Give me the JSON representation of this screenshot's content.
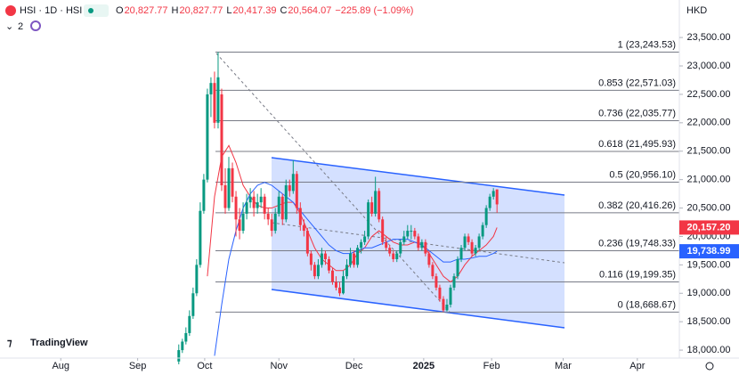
{
  "chart_data": {
    "type": "candlestick",
    "symbol": "HSI · 1D · HSI",
    "ohlc_legend": [
      {
        "key": "O",
        "value": 20827.77,
        "label": "20,827.77"
      },
      {
        "key": "H",
        "value": 20827.77,
        "label": "20,827.77"
      },
      {
        "key": "L",
        "value": 20417.39,
        "label": "20,417.39"
      },
      {
        "key": "C",
        "value": 20564.07,
        "label": "20,564.07"
      }
    ],
    "change": {
      "value": -225.89,
      "label": "−225.89 (−1.09%)"
    },
    "indicator_count": 2,
    "currency": "HKD",
    "logo": "TradingView",
    "up_color": "#089981",
    "down_color": "#f23645",
    "ylim": [
      17860,
      24160
    ],
    "yticks": [
      {
        "value": 18000,
        "label": "18,000.00"
      },
      {
        "value": 18500,
        "label": "18,500.00"
      },
      {
        "value": 19000,
        "label": "19,000.00"
      },
      {
        "value": 19500,
        "label": "19,500.00"
      },
      {
        "value": 20000,
        "label": "20,000.00"
      },
      {
        "value": 20500,
        "label": "20,500.00"
      },
      {
        "value": 21000,
        "label": "21,000.00"
      },
      {
        "value": 21500,
        "label": "21,500.00"
      },
      {
        "value": 22000,
        "label": "22,000.00"
      },
      {
        "value": 22500,
        "label": "22,500.00"
      },
      {
        "value": 23000,
        "label": "23,000.00"
      },
      {
        "value": 23500,
        "label": "23,500.00"
      }
    ],
    "xlim": [
      0,
      190
    ],
    "xticks": [
      {
        "value": 17,
        "label": "Aug"
      },
      {
        "value": 38.5,
        "label": "Sep"
      },
      {
        "value": 57.25,
        "label": "Oct"
      },
      {
        "value": 78,
        "label": "Nov"
      },
      {
        "value": 99,
        "label": "Dec"
      },
      {
        "value": 118.5,
        "label": "2025"
      },
      {
        "value": 137.5,
        "label": "Feb"
      },
      {
        "value": 157.5,
        "label": "Mar"
      },
      {
        "value": 178.25,
        "label": "Apr"
      }
    ],
    "x": [
      50,
      51,
      52,
      53,
      54,
      55,
      56,
      57,
      58,
      59,
      60,
      61,
      62,
      63,
      64,
      65,
      66,
      67,
      68,
      69,
      70,
      71,
      72,
      73,
      74,
      75,
      76,
      77,
      78,
      79,
      80,
      81,
      82,
      83,
      84,
      85,
      86,
      87,
      88,
      89,
      90,
      91,
      92,
      93,
      94,
      95,
      96,
      97,
      98,
      99,
      100,
      101,
      102,
      103,
      104,
      105,
      106,
      107,
      108,
      109,
      110,
      111,
      112,
      113,
      114,
      115,
      116,
      117,
      118,
      119,
      120,
      121,
      122,
      123,
      124,
      125,
      126,
      127,
      128,
      129,
      130,
      131,
      132,
      133,
      134,
      135,
      136,
      137,
      138,
      139
    ],
    "candles": [
      [
        17800,
        18100,
        17750,
        18000
      ],
      [
        18000,
        18200,
        17950,
        18150
      ],
      [
        18150,
        18400,
        18100,
        18300
      ],
      [
        18300,
        18700,
        18250,
        18600
      ],
      [
        18600,
        19100,
        18550,
        19000
      ],
      [
        19000,
        19600,
        18950,
        19500
      ],
      [
        19500,
        20600,
        19450,
        20450
      ],
      [
        20450,
        21100,
        20400,
        21000
      ],
      [
        21000,
        22600,
        20950,
        22500
      ],
      [
        22500,
        22800,
        22100,
        22700
      ],
      [
        22700,
        22900,
        21900,
        22000
      ],
      [
        22000,
        23243.53,
        21900,
        22800
      ],
      [
        22500,
        22600,
        20800,
        20900
      ],
      [
        20900,
        21200,
        20400,
        20500
      ],
      [
        20500,
        21400,
        20450,
        21200
      ],
      [
        21200,
        21300,
        20600,
        20700
      ],
      [
        20700,
        20800,
        20000,
        20300
      ],
      [
        20300,
        20500,
        19950,
        20100
      ],
      [
        20100,
        20600,
        20050,
        20400
      ],
      [
        20400,
        20750,
        20300,
        20600
      ],
      [
        20600,
        20850,
        20500,
        20700
      ],
      [
        20700,
        20800,
        20350,
        20500
      ],
      [
        20500,
        20750,
        20400,
        20600
      ],
      [
        20600,
        20850,
        20500,
        20700
      ],
      [
        20700,
        20750,
        20300,
        20400
      ],
      [
        20400,
        20500,
        20200,
        20300
      ],
      [
        20300,
        20400,
        20000,
        20100
      ],
      [
        20100,
        20500,
        20050,
        20400
      ],
      [
        20400,
        20800,
        20350,
        20700
      ],
      [
        20700,
        20750,
        20200,
        20300
      ],
      [
        20300,
        21000,
        20250,
        20900
      ],
      [
        20900,
        21000,
        20700,
        20800
      ],
      [
        20800,
        21340,
        20750,
        21100
      ],
      [
        21100,
        21150,
        20400,
        20500
      ],
      [
        20500,
        20600,
        20100,
        20200
      ],
      [
        20200,
        20300,
        20000,
        20100
      ],
      [
        20100,
        20150,
        19650,
        19700
      ],
      [
        19700,
        19750,
        19400,
        19500
      ],
      [
        19500,
        19550,
        19250,
        19300
      ],
      [
        19300,
        19600,
        19250,
        19500
      ],
      [
        19500,
        19800,
        19450,
        19700
      ],
      [
        19700,
        19750,
        19500,
        19600
      ],
      [
        19600,
        19650,
        19350,
        19400
      ],
      [
        19400,
        19450,
        19150,
        19200
      ],
      [
        19200,
        19300,
        19050,
        19100
      ],
      [
        19100,
        19200,
        18950,
        19000
      ],
      [
        19000,
        19400,
        18980,
        19300
      ],
      [
        19300,
        19600,
        19250,
        19500
      ],
      [
        19500,
        19800,
        19450,
        19700
      ],
      [
        19700,
        19750,
        19450,
        19500
      ],
      [
        19500,
        19850,
        19450,
        19800
      ],
      [
        19800,
        19950,
        19700,
        19900
      ],
      [
        19900,
        20100,
        19850,
        20000
      ],
      [
        20000,
        20650,
        19950,
        20600
      ],
      [
        20600,
        20700,
        20350,
        20400
      ],
      [
        20400,
        21050,
        20350,
        20800
      ],
      [
        20800,
        20850,
        20250,
        20300
      ],
      [
        20300,
        20350,
        19850,
        19900
      ],
      [
        19900,
        20000,
        19750,
        19800
      ],
      [
        19800,
        19850,
        19650,
        19700
      ],
      [
        19700,
        19750,
        19550,
        19600
      ],
      [
        19600,
        19750,
        19550,
        19700
      ],
      [
        19700,
        19950,
        19650,
        19900
      ],
      [
        19900,
        20100,
        19850,
        20000
      ],
      [
        20000,
        20200,
        19950,
        20100
      ],
      [
        20100,
        20200,
        19950,
        20100
      ],
      [
        20100,
        20150,
        19950,
        20000
      ],
      [
        20000,
        20050,
        19750,
        19800
      ],
      [
        19800,
        19950,
        19750,
        19900
      ],
      [
        19900,
        19950,
        19650,
        19700
      ],
      [
        19700,
        19750,
        19450,
        19500
      ],
      [
        19500,
        19550,
        19250,
        19300
      ],
      [
        19300,
        19350,
        19050,
        19100
      ],
      [
        19100,
        19150,
        18850,
        18900
      ],
      [
        18900,
        18950,
        18668.67,
        18700
      ],
      [
        18700,
        18900,
        18680,
        18800
      ],
      [
        18800,
        19150,
        18750,
        19100
      ],
      [
        19100,
        19350,
        19050,
        19300
      ],
      [
        19300,
        19650,
        19250,
        19600
      ],
      [
        19600,
        19850,
        19550,
        19800
      ],
      [
        19800,
        20050,
        19750,
        20000
      ],
      [
        20000,
        20050,
        19850,
        19900
      ],
      [
        19900,
        19950,
        19650,
        19700
      ],
      [
        19700,
        19850,
        19650,
        19800
      ],
      [
        19800,
        20050,
        19750,
        20000
      ],
      [
        20000,
        20250,
        19950,
        20200
      ],
      [
        20200,
        20550,
        20150,
        20500
      ],
      [
        20500,
        20750,
        20450,
        20700
      ],
      [
        20700,
        20850,
        20650,
        20800
      ],
      [
        20827.77,
        20827.77,
        20417.39,
        20564.07
      ]
    ],
    "series": [
      {
        "color": "#f23645",
        "x": [
          58,
          59,
          60,
          62,
          64,
          66,
          68,
          70,
          72,
          74,
          76,
          78,
          80,
          82,
          84,
          86,
          88,
          90,
          92,
          94,
          96,
          98,
          100,
          102,
          104,
          106,
          108,
          110,
          112,
          114,
          116,
          118,
          120,
          122,
          124,
          126,
          128,
          130,
          132,
          134,
          136,
          138,
          139
        ],
        "values": [
          19300,
          20000,
          20700,
          21400,
          21600,
          21300,
          20900,
          20700,
          20550,
          20500,
          20500,
          20550,
          20600,
          20600,
          20400,
          20100,
          19800,
          19600,
          19500,
          19400,
          19400,
          19500,
          19700,
          19800,
          20000,
          20100,
          20000,
          19900,
          19850,
          19850,
          19900,
          19850,
          19700,
          19500,
          19300,
          19200,
          19300,
          19500,
          19650,
          19750,
          19850,
          20000,
          20157.2
        ],
        "last_label": "20,157.20"
      },
      {
        "color": "#2962ff",
        "x": [
          60,
          62,
          64,
          66,
          68,
          70,
          72,
          74,
          76,
          78,
          80,
          82,
          84,
          86,
          88,
          90,
          92,
          94,
          96,
          98,
          100,
          102,
          104,
          106,
          108,
          110,
          112,
          114,
          116,
          118,
          120,
          122,
          124,
          126,
          128,
          130,
          132,
          134,
          136,
          138,
          139
        ],
        "values": [
          17900,
          18800,
          19600,
          20100,
          20500,
          20750,
          20900,
          20950,
          20900,
          20800,
          20700,
          20600,
          20450,
          20300,
          20150,
          20000,
          19850,
          19750,
          19700,
          19700,
          19750,
          19800,
          19800,
          19850,
          19900,
          19950,
          19950,
          19950,
          19900,
          19850,
          19750,
          19650,
          19550,
          19550,
          19600,
          19600,
          19620,
          19650,
          19650,
          19700,
          19738.99
        ],
        "last_label": "19,738.99"
      }
    ],
    "fib_levels": [
      {
        "value": 23243.53,
        "label": "1 (23,243.53)"
      },
      {
        "value": 22571.03,
        "label": "0.853 (22,571.03)"
      },
      {
        "value": 22035.77,
        "label": "0.736 (22,035.77)"
      },
      {
        "value": 21495.93,
        "label": "0.618 (21,495.93)"
      },
      {
        "value": 20956.1,
        "label": "0.5 (20,956.10)"
      },
      {
        "value": 20416.26,
        "label": "0.382 (20,416.26)"
      },
      {
        "value": 19748.33,
        "label": "0.236 (19,748.33)"
      },
      {
        "value": 19199.35,
        "label": "0.116 (19,199.35)"
      },
      {
        "value": 18668.67,
        "label": "0 (18,668.67)"
      }
    ]
  }
}
